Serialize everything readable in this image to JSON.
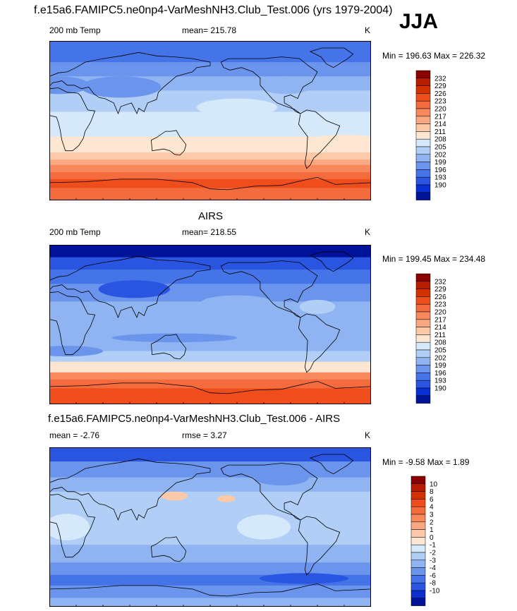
{
  "page": {
    "title": "f.e15a6.FAMIPC5.ne0np4-VarMeshNH3.Club_Test.006 (yrs 1979-2004)",
    "season": "JJA"
  },
  "chart_data": [
    {
      "type": "heatmap",
      "title": "",
      "left_label": "200 mb Temp",
      "center_label": "mean= 215.78",
      "right_label": "K",
      "stats": "Min = 196.63 Max = 226.32",
      "legend": {
        "labels": [
          "232",
          "229",
          "226",
          "223",
          "220",
          "217",
          "214",
          "211",
          "208",
          "205",
          "202",
          "199",
          "196",
          "193",
          "190"
        ],
        "colors": [
          "#8b0000",
          "#b51c00",
          "#d33200",
          "#ef4e1c",
          "#f46c3d",
          "#f7895d",
          "#f9a882",
          "#fcc9a9",
          "#fde6d2",
          "#d6e9fb",
          "#b1cff6",
          "#8fb4f1",
          "#6b95ec",
          "#4574e8",
          "#2a55e0",
          "#0b2ed0",
          "#001298"
        ]
      },
      "field": {
        "lat_bands": [
          {
            "lat_from": 90,
            "lat_to": 66,
            "level": 13
          },
          {
            "lat_from": 66,
            "lat_to": 50,
            "level": 12
          },
          {
            "lat_from": 50,
            "lat_to": 34,
            "level": 11
          },
          {
            "lat_from": 34,
            "lat_to": 10,
            "level": 10
          },
          {
            "lat_from": 10,
            "lat_to": -18,
            "level": 9
          },
          {
            "lat_from": -18,
            "lat_to": -36,
            "level": 8
          },
          {
            "lat_from": -36,
            "lat_to": -44,
            "level": 7
          },
          {
            "lat_from": -44,
            "lat_to": -50,
            "level": 6
          },
          {
            "lat_from": -50,
            "lat_to": -58,
            "level": 5
          },
          {
            "lat_from": -58,
            "lat_to": -66,
            "level": 4
          },
          {
            "lat_from": -66,
            "lat_to": -76,
            "level": 3
          },
          {
            "lat_from": -76,
            "lat_to": -90,
            "level": 4
          }
        ],
        "blobs": [
          {
            "lon": 80,
            "lat": 38,
            "rlon": 45,
            "rlat": 12,
            "level": 12
          },
          {
            "lon": 10,
            "lat": 40,
            "rlon": 35,
            "rlat": 10,
            "level": 12
          },
          {
            "lon": -95,
            "lat": 40,
            "rlon": 30,
            "rlat": 10,
            "level": 11
          },
          {
            "lon": -150,
            "lat": 15,
            "rlon": 45,
            "rlat": 10,
            "level": 9
          },
          {
            "lon": -30,
            "lat": -22,
            "rlon": 40,
            "rlat": 6,
            "level": 8
          }
        ]
      }
    },
    {
      "type": "heatmap",
      "title": "AIRS",
      "left_label": "200 mb Temp",
      "center_label": "mean= 218.55",
      "right_label": "K",
      "stats": "Min = 199.45 Max = 234.48",
      "legend": {
        "labels": [
          "232",
          "229",
          "226",
          "223",
          "220",
          "217",
          "214",
          "211",
          "208",
          "205",
          "202",
          "199",
          "196",
          "193",
          "190"
        ],
        "colors": [
          "#8b0000",
          "#b51c00",
          "#d33200",
          "#ef4e1c",
          "#f46c3d",
          "#f7895d",
          "#f9a882",
          "#fcc9a9",
          "#fde6d2",
          "#d6e9fb",
          "#b1cff6",
          "#8fb4f1",
          "#6b95ec",
          "#4574e8",
          "#2a55e0",
          "#0b2ed0",
          "#001298"
        ]
      },
      "field": {
        "lat_bands": [
          {
            "lat_from": 90,
            "lat_to": 76,
            "level": 16
          },
          {
            "lat_from": 76,
            "lat_to": 62,
            "level": 14
          },
          {
            "lat_from": 62,
            "lat_to": 46,
            "level": 13
          },
          {
            "lat_from": 46,
            "lat_to": 26,
            "level": 12
          },
          {
            "lat_from": 26,
            "lat_to": -30,
            "level": 11
          },
          {
            "lat_from": -30,
            "lat_to": -42,
            "level": 10
          },
          {
            "lat_from": -42,
            "lat_to": -54,
            "level": 8
          },
          {
            "lat_from": -54,
            "lat_to": -62,
            "level": 5
          },
          {
            "lat_from": -62,
            "lat_to": -72,
            "level": 4
          },
          {
            "lat_from": -72,
            "lat_to": -90,
            "level": 3
          }
        ],
        "blobs": [
          {
            "lon": 95,
            "lat": 40,
            "rlon": 40,
            "rlat": 10,
            "level": 14
          },
          {
            "lon": -150,
            "lat": 25,
            "rlon": 40,
            "rlat": 8,
            "level": 11
          },
          {
            "lon": -60,
            "lat": 20,
            "rlon": 20,
            "rlat": 8,
            "level": 10
          },
          {
            "lon": 140,
            "lat": -15,
            "rlon": 70,
            "rlat": 5,
            "level": 12
          },
          {
            "lon": 20,
            "lat": -30,
            "rlon": 40,
            "rlat": 6,
            "level": 12
          }
        ]
      }
    },
    {
      "type": "heatmap",
      "title": "f.e15a6.FAMIPC5.ne0np4-VarMeshNH3.Club_Test.006 - AIRS",
      "left_label": "mean =  -2.76",
      "center_label": "rmse =   3.27",
      "right_label": "K",
      "stats": "Min =  -9.58 Max =   1.89",
      "legend": {
        "labels": [
          "10",
          "8",
          "6",
          "4",
          "3",
          "2",
          "1",
          "0",
          "-1",
          "-2",
          "-3",
          "-4",
          "-6",
          "-8",
          "-10"
        ],
        "colors": [
          "#8b0000",
          "#b51c00",
          "#d33200",
          "#ef4e1c",
          "#f46c3d",
          "#f7895d",
          "#f9a882",
          "#fcc9a9",
          "#fde6d2",
          "#d6e9fb",
          "#b1cff6",
          "#8fb4f1",
          "#6b95ec",
          "#4574e8",
          "#2a55e0",
          "#0b2ed0",
          "#001298"
        ]
      },
      "field": {
        "lat_bands": [
          {
            "lat_from": 90,
            "lat_to": 74,
            "level": 14
          },
          {
            "lat_from": 74,
            "lat_to": 56,
            "level": 12
          },
          {
            "lat_from": 56,
            "lat_to": 40,
            "level": 11
          },
          {
            "lat_from": 40,
            "lat_to": 20,
            "level": 10
          },
          {
            "lat_from": 20,
            "lat_to": -20,
            "level": 10
          },
          {
            "lat_from": -20,
            "lat_to": -40,
            "level": 11
          },
          {
            "lat_from": -40,
            "lat_to": -54,
            "level": 12
          },
          {
            "lat_from": -54,
            "lat_to": -66,
            "level": 13
          },
          {
            "lat_from": -66,
            "lat_to": -80,
            "level": 12
          },
          {
            "lat_from": -80,
            "lat_to": -90,
            "level": 11
          }
        ],
        "blobs": [
          {
            "lon": 140,
            "lat": 35,
            "rlon": 15,
            "rlat": 5,
            "level": 7
          },
          {
            "lon": -162,
            "lat": 32,
            "rlon": 10,
            "rlat": 4,
            "level": 7
          },
          {
            "lon": -120,
            "lat": 0,
            "rlon": 30,
            "rlat": 14,
            "level": 9
          },
          {
            "lon": 20,
            "lat": 0,
            "rlon": 25,
            "rlat": 15,
            "level": 9
          },
          {
            "lon": -75,
            "lat": -58,
            "rlon": 50,
            "rlat": 6,
            "level": 14
          },
          {
            "lon": -100,
            "lat": 55,
            "rlon": 30,
            "rlat": 8,
            "level": 12
          }
        ]
      }
    }
  ]
}
